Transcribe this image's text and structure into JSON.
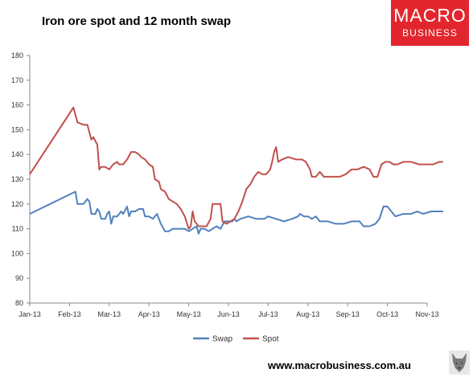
{
  "title": "Iron ore spot and 12 month swap",
  "logo": {
    "line1": "MACRO",
    "line2": "BUSINESS"
  },
  "footer": "www.macrobusiness.com.au",
  "colors": {
    "swap": "#4f81bd",
    "spot": "#c0504d",
    "axis": "#888888",
    "logo_bg": "#e3262d"
  },
  "chart_data": {
    "type": "line",
    "title": "Iron ore spot and 12 month swap",
    "xlabel": "",
    "ylabel": "",
    "ylim": [
      80,
      180
    ],
    "yticks": [
      80,
      90,
      100,
      110,
      120,
      130,
      140,
      150,
      160,
      170,
      180
    ],
    "xticks": [
      "Jan-13",
      "Feb-13",
      "Mar-13",
      "Apr-13",
      "May-13",
      "Jun-13",
      "Jul-13",
      "Aug-13",
      "Sep-13",
      "Oct-13",
      "Nov-13"
    ],
    "x_unit": "months since Jan-13",
    "legend_position": "bottom",
    "grid": false,
    "series": [
      {
        "name": "Swap",
        "color": "#4f81bd",
        "points": [
          [
            0,
            116
          ],
          [
            1.15,
            125
          ],
          [
            1.2,
            120
          ],
          [
            1.35,
            120
          ],
          [
            1.45,
            122
          ],
          [
            1.5,
            121
          ],
          [
            1.55,
            116
          ],
          [
            1.65,
            116
          ],
          [
            1.7,
            118
          ],
          [
            1.75,
            117
          ],
          [
            1.8,
            114
          ],
          [
            1.9,
            114
          ],
          [
            1.95,
            116
          ],
          [
            2.0,
            117
          ],
          [
            2.05,
            112
          ],
          [
            2.1,
            115
          ],
          [
            2.2,
            115
          ],
          [
            2.3,
            117
          ],
          [
            2.35,
            116
          ],
          [
            2.45,
            119
          ],
          [
            2.5,
            115
          ],
          [
            2.55,
            117
          ],
          [
            2.65,
            117
          ],
          [
            2.75,
            118
          ],
          [
            2.85,
            118
          ],
          [
            2.9,
            115
          ],
          [
            3.0,
            115
          ],
          [
            3.1,
            114
          ],
          [
            3.2,
            116
          ],
          [
            3.3,
            112
          ],
          [
            3.4,
            109
          ],
          [
            3.5,
            109
          ],
          [
            3.6,
            110
          ],
          [
            3.7,
            110
          ],
          [
            3.9,
            110
          ],
          [
            4.0,
            109
          ],
          [
            4.1,
            110
          ],
          [
            4.2,
            111
          ],
          [
            4.25,
            108
          ],
          [
            4.3,
            110
          ],
          [
            4.4,
            110
          ],
          [
            4.5,
            109
          ],
          [
            4.6,
            110
          ],
          [
            4.7,
            111
          ],
          [
            4.8,
            110
          ],
          [
            4.9,
            113
          ],
          [
            5.1,
            113
          ],
          [
            5.15,
            114
          ],
          [
            5.2,
            113
          ],
          [
            5.3,
            114
          ],
          [
            5.5,
            115
          ],
          [
            5.7,
            114
          ],
          [
            5.9,
            114
          ],
          [
            6.0,
            115
          ],
          [
            6.2,
            114
          ],
          [
            6.4,
            113
          ],
          [
            6.6,
            114
          ],
          [
            6.75,
            115
          ],
          [
            6.8,
            116
          ],
          [
            6.9,
            115
          ],
          [
            7.0,
            115
          ],
          [
            7.1,
            114
          ],
          [
            7.2,
            115
          ],
          [
            7.3,
            113
          ],
          [
            7.5,
            113
          ],
          [
            7.7,
            112
          ],
          [
            7.9,
            112
          ],
          [
            8.1,
            113
          ],
          [
            8.3,
            113
          ],
          [
            8.4,
            111
          ],
          [
            8.55,
            111
          ],
          [
            8.7,
            112
          ],
          [
            8.8,
            114
          ],
          [
            8.9,
            119
          ],
          [
            9.0,
            119
          ],
          [
            9.1,
            117
          ],
          [
            9.2,
            115
          ],
          [
            9.4,
            116
          ],
          [
            9.6,
            116
          ],
          [
            9.75,
            117
          ],
          [
            9.9,
            116
          ],
          [
            10.1,
            117
          ],
          [
            10.3,
            117
          ],
          [
            10.4,
            117
          ]
        ]
      },
      {
        "name": "Spot",
        "color": "#c0504d",
        "points": [
          [
            0,
            132
          ],
          [
            1.1,
            159
          ],
          [
            1.2,
            153
          ],
          [
            1.35,
            152
          ],
          [
            1.45,
            152
          ],
          [
            1.5,
            149
          ],
          [
            1.55,
            146
          ],
          [
            1.6,
            147
          ],
          [
            1.7,
            144
          ],
          [
            1.75,
            134
          ],
          [
            1.8,
            135
          ],
          [
            1.9,
            135
          ],
          [
            2.0,
            134
          ],
          [
            2.1,
            136
          ],
          [
            2.2,
            137
          ],
          [
            2.25,
            136
          ],
          [
            2.35,
            136
          ],
          [
            2.45,
            138
          ],
          [
            2.55,
            141
          ],
          [
            2.65,
            141
          ],
          [
            2.75,
            140
          ],
          [
            2.8,
            139
          ],
          [
            2.9,
            138
          ],
          [
            3.0,
            136
          ],
          [
            3.1,
            135
          ],
          [
            3.15,
            130
          ],
          [
            3.25,
            129
          ],
          [
            3.3,
            126
          ],
          [
            3.4,
            125
          ],
          [
            3.5,
            122
          ],
          [
            3.6,
            121
          ],
          [
            3.7,
            120
          ],
          [
            3.8,
            118
          ],
          [
            3.9,
            115
          ],
          [
            4.0,
            110
          ],
          [
            4.05,
            111
          ],
          [
            4.1,
            117
          ],
          [
            4.15,
            113
          ],
          [
            4.25,
            111
          ],
          [
            4.35,
            111
          ],
          [
            4.45,
            111
          ],
          [
            4.55,
            114
          ],
          [
            4.6,
            120
          ],
          [
            4.7,
            120
          ],
          [
            4.8,
            120
          ],
          [
            4.85,
            113
          ],
          [
            4.95,
            112
          ],
          [
            5.05,
            113
          ],
          [
            5.15,
            114
          ],
          [
            5.25,
            117
          ],
          [
            5.35,
            121
          ],
          [
            5.45,
            126
          ],
          [
            5.55,
            128
          ],
          [
            5.65,
            131
          ],
          [
            5.75,
            133
          ],
          [
            5.85,
            132
          ],
          [
            5.95,
            132
          ],
          [
            6.05,
            134
          ],
          [
            6.1,
            137
          ],
          [
            6.15,
            141
          ],
          [
            6.2,
            143
          ],
          [
            6.25,
            137
          ],
          [
            6.35,
            138
          ],
          [
            6.5,
            139
          ],
          [
            6.7,
            138
          ],
          [
            6.85,
            138
          ],
          [
            6.95,
            137
          ],
          [
            7.05,
            134
          ],
          [
            7.1,
            131
          ],
          [
            7.2,
            131
          ],
          [
            7.3,
            133
          ],
          [
            7.4,
            131
          ],
          [
            7.6,
            131
          ],
          [
            7.8,
            131
          ],
          [
            7.95,
            132
          ],
          [
            8.1,
            134
          ],
          [
            8.25,
            134
          ],
          [
            8.4,
            135
          ],
          [
            8.55,
            134
          ],
          [
            8.65,
            131
          ],
          [
            8.75,
            131
          ],
          [
            8.85,
            136
          ],
          [
            8.95,
            137
          ],
          [
            9.05,
            137
          ],
          [
            9.15,
            136
          ],
          [
            9.25,
            136
          ],
          [
            9.4,
            137
          ],
          [
            9.6,
            137
          ],
          [
            9.8,
            136
          ],
          [
            10.0,
            136
          ],
          [
            10.15,
            136
          ],
          [
            10.3,
            137
          ],
          [
            10.4,
            137
          ]
        ]
      }
    ]
  }
}
